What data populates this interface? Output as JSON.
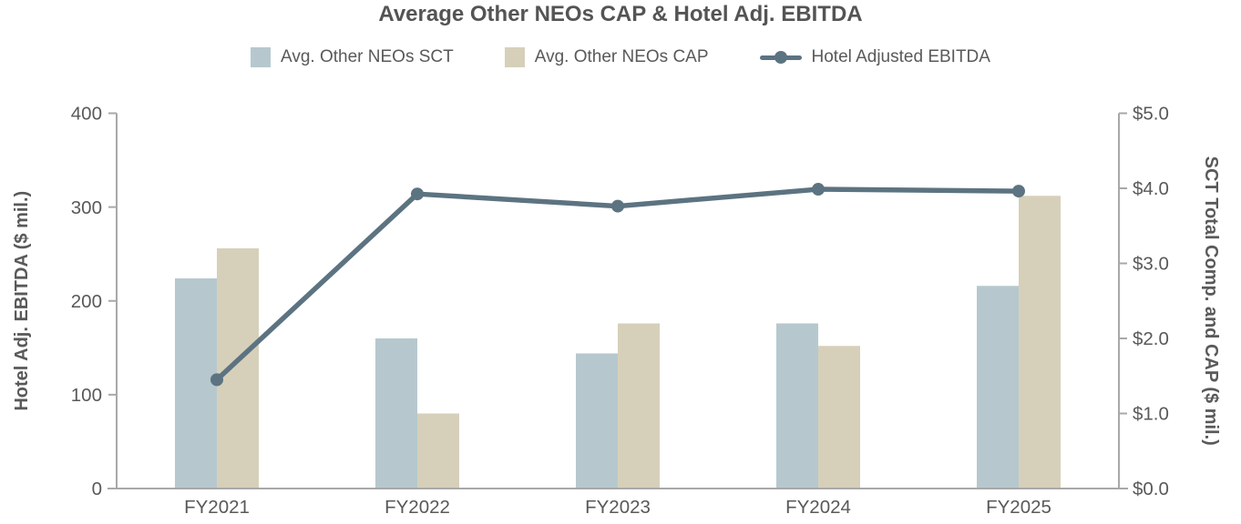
{
  "chart_data": {
    "type": "bar+line",
    "title": "Average Other NEOs CAP & Hotel Adj. EBITDA",
    "categories": [
      "FY2021",
      "FY2022",
      "FY2023",
      "FY2024",
      "FY2025"
    ],
    "series": [
      {
        "name": "Avg. Other NEOs SCT",
        "type": "bar",
        "axis": "right",
        "color": "#b6c8ce",
        "values": [
          2.8,
          2.0,
          1.8,
          2.2,
          2.7
        ]
      },
      {
        "name": "Avg. Other NEOs CAP",
        "type": "bar",
        "axis": "right",
        "color": "#d6d0ba",
        "values": [
          3.2,
          1.0,
          2.2,
          1.9,
          3.9
        ]
      },
      {
        "name": "Hotel Adjusted EBITDA",
        "type": "line",
        "axis": "left",
        "color": "#5c7381",
        "values": [
          116,
          314,
          301,
          319,
          317
        ]
      }
    ],
    "left_axis": {
      "label": "Hotel Adj. EBITDA ($ mil.)",
      "min": 0,
      "max": 400,
      "ticks": [
        {
          "label": "0",
          "value": 0
        },
        {
          "label": "100",
          "value": 100
        },
        {
          "label": "200",
          "value": 200
        },
        {
          "label": "300",
          "value": 300
        },
        {
          "label": "400",
          "value": 400
        }
      ]
    },
    "right_axis": {
      "label": "SCT Total Comp. and CAP ($ mil.)",
      "min": 0,
      "max": 5,
      "ticks": [
        {
          "label": "$0.0",
          "value": 0
        },
        {
          "label": "$1.0",
          "value": 1
        },
        {
          "label": "$2.0",
          "value": 2
        },
        {
          "label": "$3.0",
          "value": 3
        },
        {
          "label": "$4.0",
          "value": 4
        },
        {
          "label": "$5.0",
          "value": 5
        }
      ]
    },
    "colors": {
      "axis_line": "#a8a8a8",
      "text": "#595959",
      "title": "#545454"
    },
    "legend_position": "top",
    "grid": false
  }
}
